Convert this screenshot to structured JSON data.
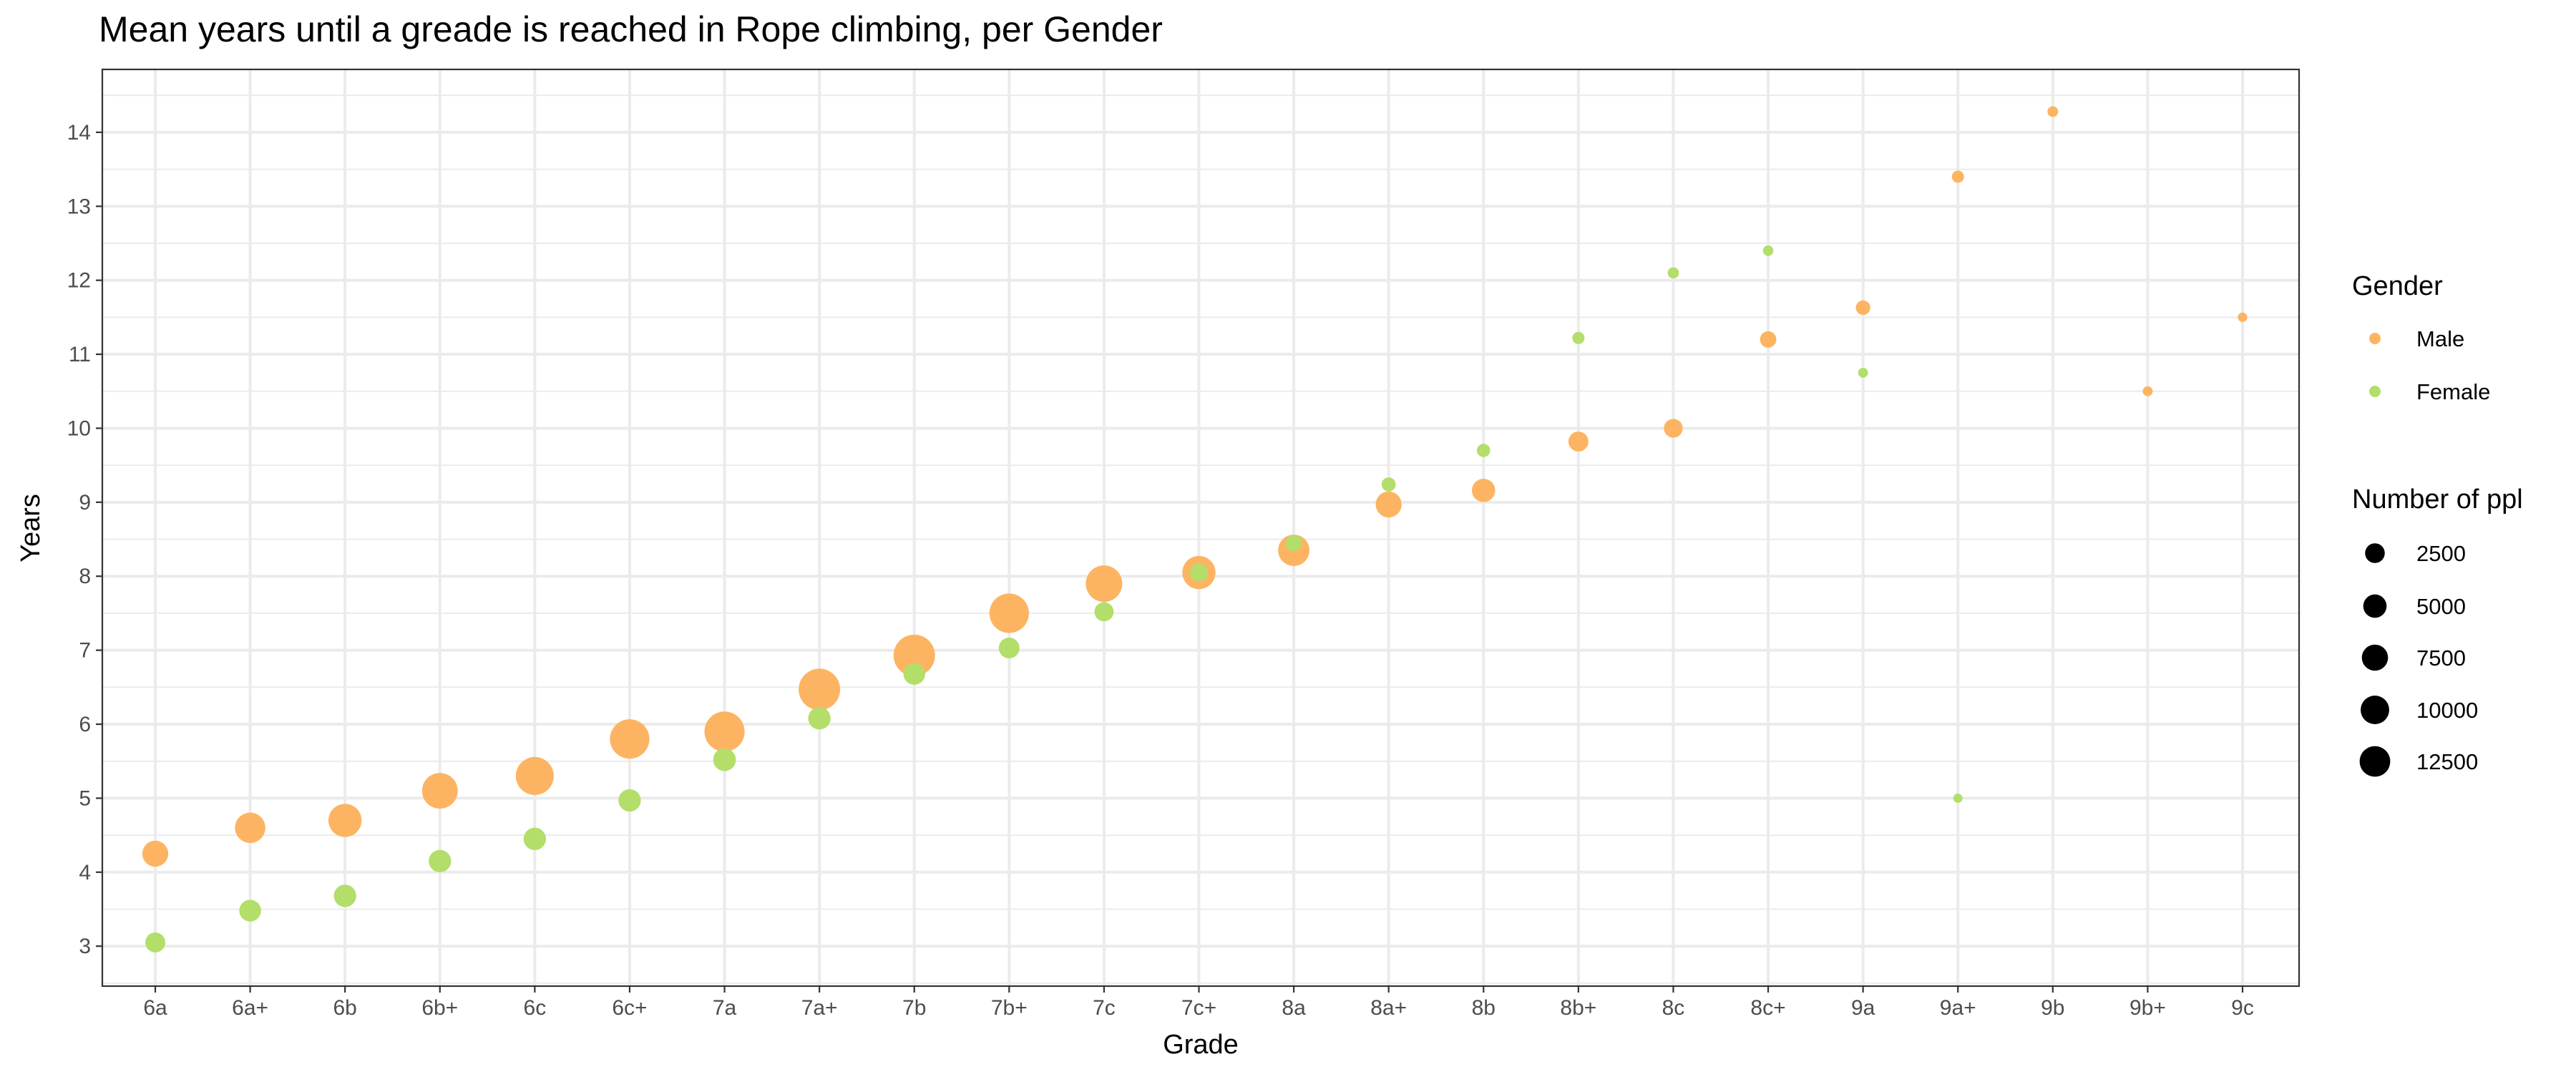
{
  "chart_data": {
    "type": "scatter",
    "title": "Mean years until a greade is reached in Rope climbing, per Gender",
    "xlabel": "Grade",
    "ylabel": "Years",
    "categories": [
      "6a",
      "6a+",
      "6b",
      "6b+",
      "6c",
      "6c+",
      "7a",
      "7a+",
      "7b",
      "7b+",
      "7c",
      "7c+",
      "8a",
      "8a+",
      "8b",
      "8b+",
      "8c",
      "8c+",
      "9a",
      "9a+",
      "9b",
      "9b+",
      "9c"
    ],
    "yticks": [
      3,
      4,
      5,
      6,
      7,
      8,
      9,
      10,
      11,
      12,
      13,
      14
    ],
    "ylim": [
      2.46,
      14.85
    ],
    "grid": true,
    "series": [
      {
        "name": "Male",
        "color": "#FDB462",
        "values": [
          4.25,
          4.6,
          4.7,
          5.1,
          5.3,
          5.8,
          5.9,
          6.47,
          6.93,
          7.5,
          7.9,
          8.05,
          8.35,
          8.97,
          9.16,
          9.82,
          10.0,
          11.2,
          11.63,
          13.4,
          14.28,
          10.5,
          11.5
        ],
        "sizes": [
          3500,
          5500,
          7000,
          8500,
          10000,
          11000,
          11500,
          12500,
          12500,
          11000,
          9000,
          7000,
          6000,
          3500,
          2500,
          1500,
          1200,
          700,
          400,
          150,
          50,
          20,
          10
        ]
      },
      {
        "name": "Female",
        "color": "#B3DE69",
        "values": [
          3.05,
          3.48,
          3.68,
          4.15,
          4.45,
          4.97,
          5.52,
          6.08,
          6.68,
          7.03,
          7.52,
          8.05,
          8.45,
          9.24,
          9.7,
          11.22,
          12.1,
          12.4,
          10.75,
          5.0,
          null,
          null,
          null
        ],
        "sizes": [
          1500,
          2000,
          2200,
          2200,
          2200,
          2200,
          2300,
          2200,
          2000,
          1700,
          1300,
          1000,
          700,
          350,
          250,
          150,
          80,
          40,
          20,
          5,
          null,
          null,
          null
        ]
      }
    ],
    "legend": {
      "placement": "right",
      "color_title": "Gender",
      "color_entries": [
        "Male",
        "Female"
      ],
      "size_title": "Number of ppl",
      "size_entries": [
        "2500",
        "5000",
        "7500",
        "10000",
        "12500"
      ],
      "size_values": [
        2500,
        5000,
        7500,
        10000,
        12500
      ]
    }
  }
}
